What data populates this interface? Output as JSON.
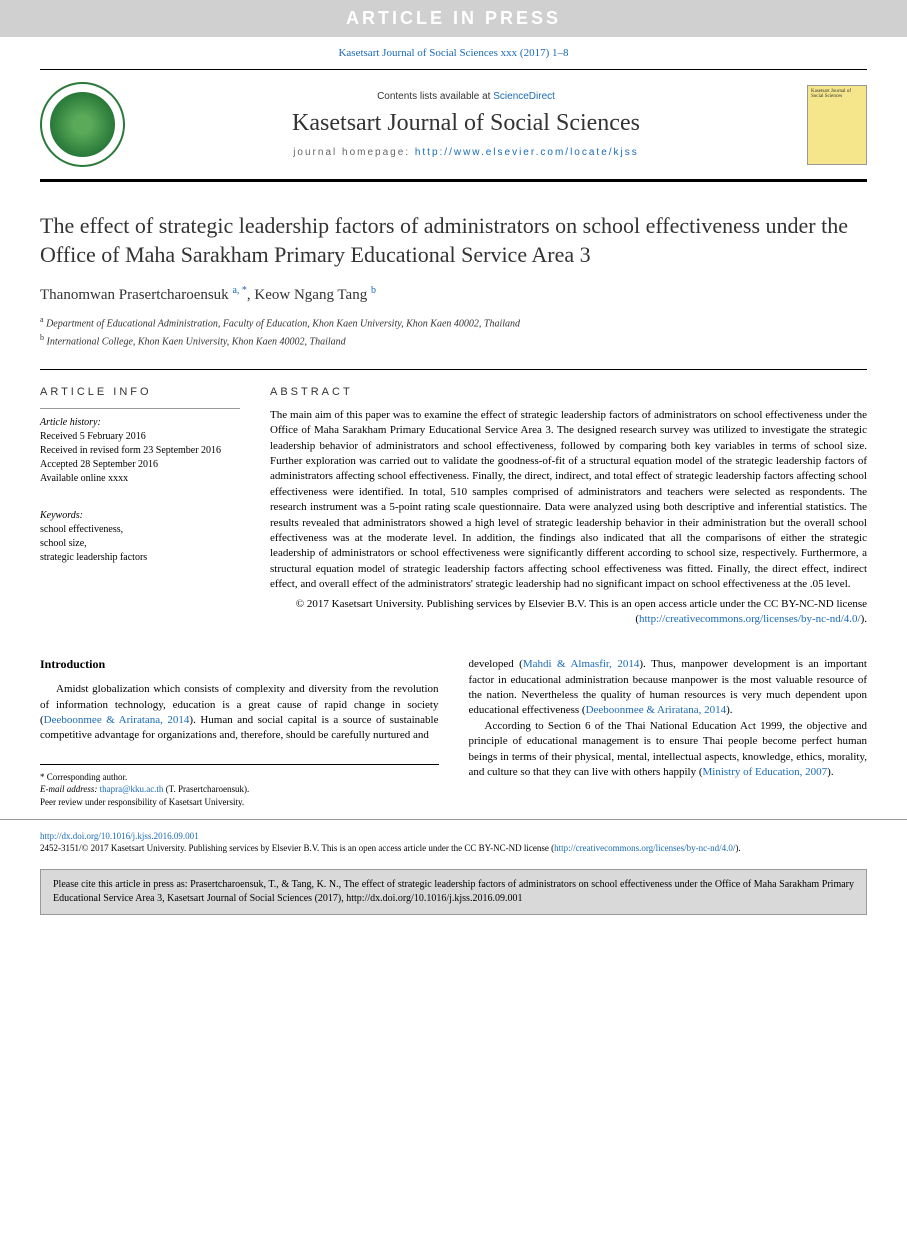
{
  "banner": "ARTICLE IN PRESS",
  "top_citation": "Kasetsart Journal of Social Sciences xxx (2017) 1–8",
  "header": {
    "contents_prefix": "Contents lists available at ",
    "contents_link": "ScienceDirect",
    "journal_name": "Kasetsart Journal of Social Sciences",
    "homepage_label": "journal homepage: ",
    "homepage_url": "http://www.elsevier.com/locate/kjss",
    "cover_text": "Kasetsart Journal of Social Sciences"
  },
  "title": "The effect of strategic leadership factors of administrators on school effectiveness under the Office of Maha Sarakham Primary Educational Service Area 3",
  "authors": {
    "a1_name": "Thanomwan Prasertcharoensuk",
    "a1_sup": "a, *",
    "a2_name": "Keow Ngang Tang",
    "a2_sup": "b"
  },
  "affiliations": {
    "a": "Department of Educational Administration, Faculty of Education, Khon Kaen University, Khon Kaen 40002, Thailand",
    "b": "International College, Khon Kaen University, Khon Kaen 40002, Thailand"
  },
  "article_info": {
    "heading": "ARTICLE INFO",
    "history_label": "Article history:",
    "received": "Received 5 February 2016",
    "revised": "Received in revised form 23 September 2016",
    "accepted": "Accepted 28 September 2016",
    "online": "Available online xxxx",
    "keywords_label": "Keywords:",
    "kw1": "school effectiveness,",
    "kw2": "school size,",
    "kw3": "strategic leadership factors"
  },
  "abstract": {
    "heading": "ABSTRACT",
    "text": "The main aim of this paper was to examine the effect of strategic leadership factors of administrators on school effectiveness under the Office of Maha Sarakham Primary Educational Service Area 3. The designed research survey was utilized to investigate the strategic leadership behavior of administrators and school effectiveness, followed by comparing both key variables in terms of school size. Further exploration was carried out to validate the goodness-of-fit of a structural equation model of the strategic leadership factors of administrators affecting school effectiveness. Finally, the direct, indirect, and total effect of strategic leadership factors affecting school effectiveness were identified. In total, 510 samples comprised of administrators and teachers were selected as respondents. The research instrument was a 5-point rating scale questionnaire. Data were analyzed using both descriptive and inferential statistics. The results revealed that administrators showed a high level of strategic leadership behavior in their administration but the overall school effectiveness was at the moderate level. In addition, the findings also indicated that all the comparisons of either the strategic leadership of administrators or school effectiveness were significantly different according to school size, respectively. Furthermore, a structural equation model of strategic leadership factors affecting school effectiveness was fitted. Finally, the direct effect, indirect effect, and overall effect of the administrators' strategic leadership had no significant impact on school effectiveness at the .05 level.",
    "copyright": "© 2017 Kasetsart University. Publishing services by Elsevier B.V. This is an open access article under the CC BY-NC-ND license (",
    "license_url": "http://creativecommons.org/licenses/by-nc-nd/4.0/",
    "copyright_close": ")."
  },
  "intro": {
    "heading": "Introduction",
    "para1_pre": "Amidst globalization which consists of complexity and diversity from the revolution of information technology, education is a great cause of rapid change in society (",
    "para1_link": "Deeboonmee & Ariratana, 2014",
    "para1_post": "). Human and social capital is a source of sustainable competitive advantage for organizations and, therefore, should be carefully nurtured and",
    "para2_pre": "developed (",
    "para2_link1": "Mahdi & Almasfir, 2014",
    "para2_mid": "). Thus, manpower development is an important factor in educational administration because manpower is the most valuable resource of the nation. Nevertheless the quality of human resources is very much dependent upon educational effectiveness (",
    "para2_link2": "Deeboonmee & Ariratana, 2014",
    "para2_post": ").",
    "para3_pre": "According to Section 6 of the Thai National Education Act 1999, the objective and principle of educational management is to ensure Thai people become perfect human beings in terms of their physical, mental, intellectual aspects, knowledge, ethics, morality, and culture so that they can live with others happily (",
    "para3_link": "Ministry of Education, 2007",
    "para3_post": ")."
  },
  "footnote": {
    "corr": "* Corresponding author.",
    "email_label": "E-mail address: ",
    "email": "thapra@kku.ac.th",
    "email_name": " (T. Prasertcharoensuk).",
    "peer": "Peer review under responsibility of Kasetsart University."
  },
  "footer": {
    "doi": "http://dx.doi.org/10.1016/j.kjss.2016.09.001",
    "issn_line": "2452-3151/© 2017 Kasetsart University. Publishing services by Elsevier B.V. This is an open access article under the CC BY-NC-ND license (",
    "license_url": "http://creativecommons.org/licenses/by-nc-nd/4.0/",
    "close": ")."
  },
  "cite_box": "Please cite this article in press as: Prasertcharoensuk, T., & Tang, K. N., The effect of strategic leadership factors of administrators on school effectiveness under the Office of Maha Sarakham Primary Educational Service Area 3, Kasetsart Journal of Social Sciences (2017), http://dx.doi.org/10.1016/j.kjss.2016.09.001",
  "colors": {
    "link": "#1a6bb5",
    "banner_bg": "#d0d0d0",
    "logo_green": "#2a7a3a",
    "cover_bg": "#f5e68c",
    "cite_bg": "#d9d9d9"
  }
}
